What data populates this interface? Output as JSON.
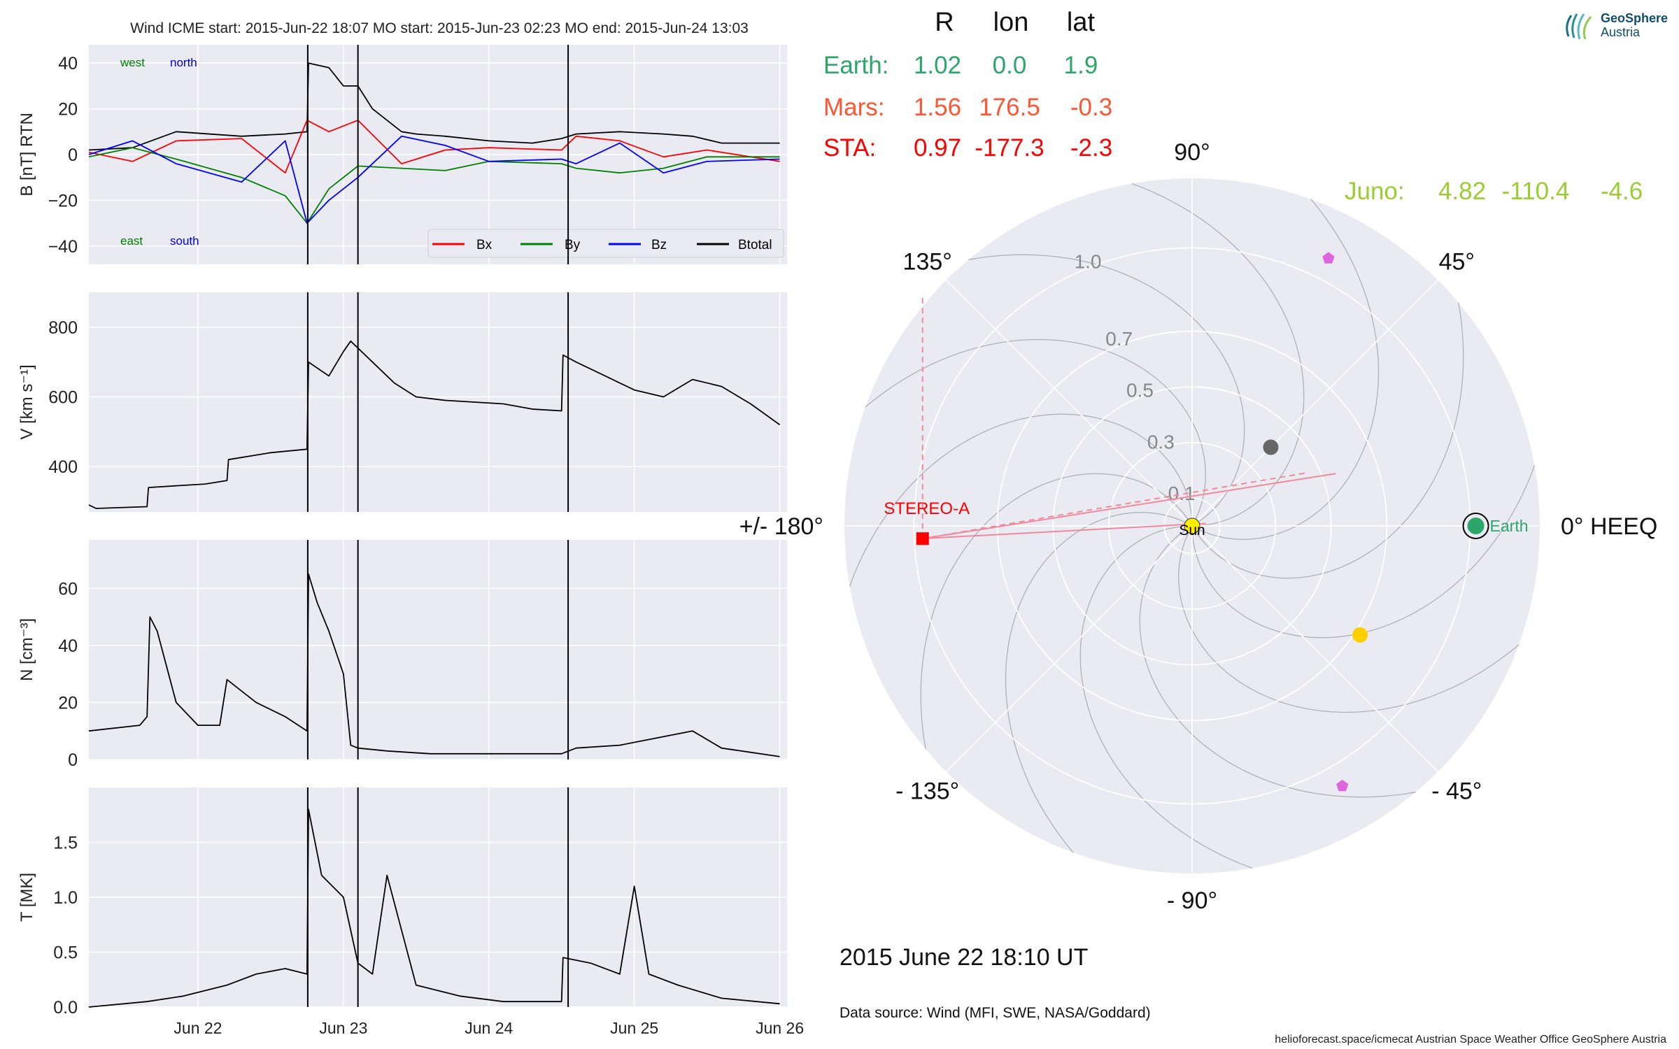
{
  "header": {
    "title": "Wind    ICME start: 2015-Jun-22 18:07   MO start: 2015-Jun-23 02:23   MO end: 2015-Jun-24 13:03"
  },
  "logo": {
    "name": "GeoSphere",
    "sub": "Austria"
  },
  "footer": {
    "date": "2015 June 22  18:10 UT",
    "source": "Data source: Wind (MFI, SWE, NASA/Goddard)",
    "credit": "helioforecast.space/icmecat   Austrian Space Weather Office   GeoSphere Austria"
  },
  "colors": {
    "panel_bg": "#eaeaf2",
    "grid": "#ffffff",
    "Bx": "#ff0000",
    "By": "#008000",
    "Bz": "#0000ff",
    "Btotal": "#000000",
    "earth": "#2ca66a",
    "mars": "#ff5533",
    "sta": "#ff0000",
    "juno": "#9acd32",
    "sun": "#ffee00",
    "grey_planet": "#666666",
    "yellow_planet": "#ffd000",
    "pentagon": "#dd66dd"
  },
  "chart_data": [
    {
      "type": "line",
      "ylabel": "B [nT] RTN",
      "ylim": [
        -48,
        48
      ],
      "yticks": [
        "40",
        "20",
        "0",
        "−20",
        "−40"
      ],
      "ytick_values": [
        40,
        20,
        0,
        -20,
        -40
      ],
      "annotations": {
        "west": "west",
        "north": "north",
        "east": "east",
        "south": "south"
      },
      "legend": [
        "Bx",
        "By",
        "Bz",
        "Btotal"
      ],
      "legend_placement": "lower right",
      "series": [
        {
          "name": "Btotal",
          "x": [
            21.25,
            21.55,
            21.85,
            22.3,
            22.6,
            22.75,
            22.76,
            22.9,
            23.0,
            23.1,
            23.2,
            23.4,
            23.5,
            23.7,
            24.0,
            24.3,
            24.5,
            24.6,
            24.9,
            25.2,
            25.4,
            25.6,
            26.0
          ],
          "y": [
            2,
            3,
            10,
            8,
            9,
            10,
            40,
            38,
            30,
            30,
            20,
            10,
            9,
            8,
            6,
            5,
            7,
            9,
            10,
            9,
            8,
            5,
            5
          ]
        },
        {
          "name": "Bx",
          "x": [
            21.25,
            21.55,
            21.85,
            22.3,
            22.6,
            22.75,
            22.9,
            23.1,
            23.4,
            23.7,
            24.0,
            24.5,
            24.6,
            24.9,
            25.2,
            25.5,
            26.0
          ],
          "y": [
            1,
            -3,
            6,
            7,
            -8,
            15,
            10,
            15,
            -4,
            2,
            3,
            2,
            8,
            6,
            -1,
            2,
            -3
          ]
        },
        {
          "name": "By",
          "x": [
            21.25,
            21.55,
            21.85,
            22.3,
            22.6,
            22.75,
            22.9,
            23.1,
            23.4,
            23.7,
            24.0,
            24.5,
            24.6,
            24.9,
            25.2,
            25.5,
            26.0
          ],
          "y": [
            -1,
            3,
            -2,
            -10,
            -18,
            -30,
            -15,
            -5,
            -6,
            -7,
            -3,
            -4,
            -6,
            -8,
            -6,
            -1,
            -1
          ]
        },
        {
          "name": "Bz",
          "x": [
            21.25,
            21.55,
            21.85,
            22.3,
            22.6,
            22.75,
            22.9,
            23.1,
            23.4,
            23.7,
            24.0,
            24.5,
            24.6,
            24.9,
            25.2,
            25.5,
            26.0
          ],
          "y": [
            0,
            6,
            -4,
            -12,
            6,
            -30,
            -20,
            -10,
            8,
            4,
            -3,
            -2,
            -4,
            5,
            -8,
            -3,
            -2
          ]
        }
      ]
    },
    {
      "type": "line",
      "ylabel": "V [km s⁻¹]",
      "ylim": [
        270,
        900
      ],
      "yticks": [
        "800",
        "600",
        "400"
      ],
      "ytick_values": [
        800,
        600,
        400
      ],
      "series": [
        {
          "name": "",
          "x": [
            21.25,
            21.3,
            21.65,
            21.66,
            22.05,
            22.2,
            22.21,
            22.5,
            22.75,
            22.76,
            22.9,
            23.0,
            23.05,
            23.2,
            23.35,
            23.5,
            23.7,
            23.9,
            24.1,
            24.3,
            24.5,
            24.51,
            24.6,
            24.8,
            25.0,
            25.2,
            25.4,
            25.6,
            25.8,
            26.0
          ],
          "y": [
            290,
            280,
            285,
            340,
            350,
            360,
            420,
            440,
            450,
            700,
            660,
            730,
            760,
            700,
            640,
            600,
            590,
            585,
            580,
            565,
            560,
            720,
            700,
            660,
            620,
            600,
            650,
            630,
            580,
            520
          ]
        }
      ]
    },
    {
      "type": "line",
      "ylabel": "N [cm⁻³]",
      "ylim": [
        0,
        77
      ],
      "yticks": [
        "60",
        "40",
        "20",
        "0"
      ],
      "ytick_values": [
        60,
        40,
        20,
        0
      ],
      "series": [
        {
          "name": "",
          "x": [
            21.25,
            21.6,
            21.65,
            21.67,
            21.72,
            21.85,
            22.0,
            22.15,
            22.2,
            22.4,
            22.6,
            22.75,
            22.76,
            22.82,
            22.9,
            23.0,
            23.05,
            23.1,
            23.3,
            23.6,
            23.9,
            24.2,
            24.5,
            24.6,
            24.9,
            25.2,
            25.4,
            25.6,
            26.0
          ],
          "y": [
            10,
            12,
            15,
            50,
            45,
            20,
            12,
            12,
            28,
            20,
            15,
            10,
            65,
            55,
            45,
            30,
            5,
            4,
            3,
            2,
            2,
            2,
            2,
            4,
            5,
            8,
            10,
            4,
            1
          ]
        }
      ]
    },
    {
      "type": "line",
      "ylabel": "T [MK]",
      "ylim": [
        0,
        2.0
      ],
      "yticks": [
        "1.5",
        "1.0",
        "0.5",
        "0.0"
      ],
      "ytick_values": [
        1.5,
        1.0,
        0.5,
        0.0
      ],
      "series": [
        {
          "name": "",
          "x": [
            21.25,
            21.65,
            21.9,
            22.2,
            22.4,
            22.6,
            22.75,
            22.76,
            22.85,
            23.0,
            23.1,
            23.2,
            23.3,
            23.5,
            23.8,
            24.1,
            24.5,
            24.51,
            24.7,
            24.9,
            25.0,
            25.1,
            25.3,
            25.6,
            26.0
          ],
          "y": [
            0.0,
            0.05,
            0.1,
            0.2,
            0.3,
            0.35,
            0.3,
            1.8,
            1.2,
            1.0,
            0.4,
            0.3,
            1.2,
            0.2,
            0.1,
            0.05,
            0.05,
            0.45,
            0.4,
            0.3,
            1.1,
            0.3,
            0.2,
            0.08,
            0.03
          ]
        }
      ]
    },
    {
      "type": "scatter",
      "subtype": "polar",
      "columns": [
        "R",
        "lon",
        "lat"
      ],
      "rows": [
        {
          "name": "Earth:",
          "R": "1.02",
          "lon": "0.0",
          "lat": "1.9"
        },
        {
          "name": "Mars:",
          "R": "1.56",
          "lon": "176.5",
          "lat": "-0.3"
        },
        {
          "name": "STA:",
          "R": "0.97",
          "lon": "-177.3",
          "lat": "-2.3"
        },
        {
          "name": "Juno:",
          "R": "4.82",
          "lon": "-110.4",
          "lat": "-4.6"
        }
      ],
      "angle_labels": [
        "0° HEEQ",
        "45°",
        "90°",
        "135°",
        "+/- 180°",
        "- 135°",
        "- 90°",
        "- 45°"
      ],
      "angle_values": [
        0,
        45,
        90,
        135,
        180,
        -135,
        -90,
        -45
      ],
      "radial_labels": [
        "0.1",
        "0.3",
        "0.5",
        "0.7",
        "1.0"
      ],
      "radial_values": [
        0.1,
        0.3,
        0.5,
        0.7,
        1.0
      ],
      "rmax": 1.25,
      "sun_label": "Sun",
      "earth_label": "Earth",
      "sta_label": "STEREO-A",
      "bodies": [
        {
          "name": "Sun",
          "lon": 0,
          "r": 0
        },
        {
          "name": "Earth",
          "lon": 0,
          "r": 1.02
        },
        {
          "name": "STEREO-A",
          "lon": -177.3,
          "r": 0.97
        },
        {
          "name": "grey-planet",
          "lon": 45,
          "r": 0.4
        },
        {
          "name": "yellow-planet",
          "lon": -33,
          "r": 0.72
        },
        {
          "name": "pentagon-north",
          "lon": 63,
          "r": 1.08
        },
        {
          "name": "pentagon-south",
          "lon": -60,
          "r": 1.08
        }
      ]
    }
  ]
}
